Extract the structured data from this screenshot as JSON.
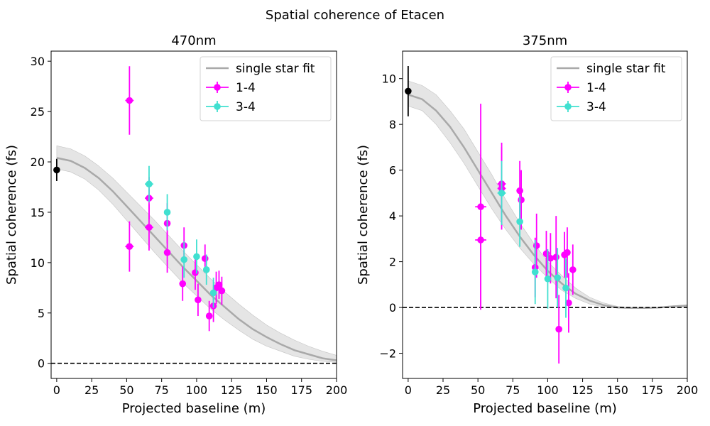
{
  "figure": {
    "suptitle": "Spatial coherence of Etacen"
  },
  "chart_data": [
    {
      "type": "scatter",
      "title": "470nm",
      "xlabel": "Projected baseline (m)",
      "ylabel": "Spatial coherence (fs)",
      "xlim": [
        -4,
        200
      ],
      "ylim": [
        -1.5,
        31
      ],
      "xticks": [
        0,
        25,
        50,
        75,
        100,
        125,
        150,
        175,
        200
      ],
      "yticks": [
        0,
        5,
        10,
        15,
        20,
        25,
        30
      ],
      "legend_position": "top-right",
      "reference_line_y": 0,
      "fit": {
        "name": "single star fit",
        "x": [
          0,
          10,
          20,
          30,
          40,
          50,
          60,
          70,
          80,
          90,
          100,
          110,
          120,
          130,
          140,
          150,
          160,
          170,
          180,
          190,
          200
        ],
        "y": [
          20.4,
          20.1,
          19.4,
          18.4,
          17.1,
          15.6,
          14.1,
          12.6,
          11.1,
          9.6,
          8.2,
          6.8,
          5.6,
          4.4,
          3.4,
          2.6,
          1.9,
          1.3,
          0.9,
          0.5,
          0.3
        ],
        "lower": [
          19.3,
          19.0,
          18.3,
          17.2,
          15.8,
          14.2,
          12.6,
          11.0,
          9.5,
          8.0,
          6.7,
          5.4,
          4.3,
          3.3,
          2.4,
          1.7,
          1.2,
          0.7,
          0.4,
          0.2,
          0.1
        ],
        "upper": [
          21.6,
          21.3,
          20.6,
          19.6,
          18.4,
          17.0,
          15.6,
          14.2,
          12.7,
          11.2,
          9.8,
          8.4,
          7.1,
          5.9,
          4.8,
          3.8,
          3.0,
          2.3,
          1.7,
          1.2,
          0.8
        ]
      },
      "zero_baseline_point": {
        "x": 0,
        "y": 19.2,
        "yerr": 1.1,
        "color": "#000000"
      },
      "series": [
        {
          "name": "1-4",
          "color": "#ff00ff",
          "points": [
            {
              "x": 52,
              "y": 26.1,
              "yerr": 3.4,
              "xerr": 3
            },
            {
              "x": 52,
              "y": 11.6,
              "yerr": 2.5,
              "xerr": 3
            },
            {
              "x": 66,
              "y": 16.4,
              "yerr": 2.1,
              "xerr": 3
            },
            {
              "x": 66,
              "y": 13.5,
              "yerr": 2.3,
              "xerr": 3
            },
            {
              "x": 79,
              "y": 13.9,
              "yerr": 2.0,
              "xerr": 2
            },
            {
              "x": 79,
              "y": 11.0,
              "yerr": 2.0,
              "xerr": 2
            },
            {
              "x": 91,
              "y": 11.7,
              "yerr": 1.8,
              "xerr": 2
            },
            {
              "x": 90,
              "y": 7.9,
              "yerr": 1.7,
              "xerr": 2
            },
            {
              "x": 99,
              "y": 9.0,
              "yerr": 1.7,
              "xerr": 2
            },
            {
              "x": 101,
              "y": 6.3,
              "yerr": 1.6,
              "xerr": 2
            },
            {
              "x": 106,
              "y": 10.4,
              "yerr": 1.4,
              "xerr": 2
            },
            {
              "x": 109,
              "y": 4.7,
              "yerr": 1.5,
              "xerr": 2
            },
            {
              "x": 112,
              "y": 5.7,
              "yerr": 1.6,
              "xerr": 2
            },
            {
              "x": 114,
              "y": 7.5,
              "yerr": 1.6,
              "xerr": 2
            },
            {
              "x": 116,
              "y": 7.8,
              "yerr": 1.4,
              "xerr": 2
            },
            {
              "x": 118,
              "y": 7.2,
              "yerr": 1.4,
              "xerr": 2
            }
          ]
        },
        {
          "name": "3-4",
          "color": "#40e0d0",
          "points": [
            {
              "x": 66,
              "y": 17.8,
              "yerr": 1.8,
              "xerr": 3
            },
            {
              "x": 79,
              "y": 15.0,
              "yerr": 1.8,
              "xerr": 2
            },
            {
              "x": 91,
              "y": 10.3,
              "yerr": 1.8,
              "xerr": 2
            },
            {
              "x": 100,
              "y": 10.6,
              "yerr": 1.7,
              "xerr": 2
            },
            {
              "x": 107,
              "y": 9.3,
              "yerr": 1.5,
              "xerr": 2
            },
            {
              "x": 112,
              "y": 7.0,
              "yerr": 1.5,
              "xerr": 2
            }
          ]
        }
      ]
    },
    {
      "type": "scatter",
      "title": "375nm",
      "xlabel": "Projected baseline (m)",
      "ylabel": "Spatial coherence (fs)",
      "xlim": [
        -4,
        200
      ],
      "ylim": [
        -3.1,
        11.2
      ],
      "xticks": [
        0,
        25,
        50,
        75,
        100,
        125,
        150,
        175,
        200
      ],
      "yticks": [
        -2,
        0,
        2,
        4,
        6,
        8,
        10
      ],
      "legend_position": "top-right",
      "reference_line_y": 0,
      "fit": {
        "name": "single star fit",
        "x": [
          0,
          10,
          20,
          30,
          40,
          50,
          60,
          70,
          80,
          90,
          100,
          110,
          120,
          130,
          140,
          150,
          160,
          170,
          180,
          190,
          200
        ],
        "y": [
          9.3,
          9.1,
          8.6,
          7.9,
          7.0,
          6.0,
          5.0,
          4.0,
          3.1,
          2.3,
          1.6,
          1.05,
          0.6,
          0.3,
          0.1,
          0.0,
          -0.02,
          -0.02,
          0.0,
          0.05,
          0.08
        ],
        "lower": [
          8.8,
          8.6,
          8.0,
          7.2,
          6.3,
          5.3,
          4.3,
          3.4,
          2.6,
          1.9,
          1.3,
          0.75,
          0.4,
          0.15,
          0.02,
          -0.03,
          -0.05,
          -0.05,
          -0.03,
          0.0,
          0.02
        ],
        "upper": [
          9.9,
          9.7,
          9.3,
          8.6,
          7.8,
          6.8,
          5.8,
          4.7,
          3.7,
          2.8,
          2.0,
          1.4,
          0.85,
          0.45,
          0.2,
          0.05,
          0.0,
          0.0,
          0.02,
          0.08,
          0.12
        ]
      },
      "zero_baseline_point": {
        "x": 0,
        "y": 9.45,
        "yerr": 1.1,
        "color": "#000000"
      },
      "series": [
        {
          "name": "1-4",
          "color": "#ff00ff",
          "points": [
            {
              "x": 52,
              "y": 4.4,
              "yerr": 4.5,
              "xerr": 4
            },
            {
              "x": 52,
              "y": 2.95,
              "yerr": 3.0,
              "xerr": 4
            },
            {
              "x": 67,
              "y": 5.4,
              "yerr": 1.8,
              "xerr": 3
            },
            {
              "x": 67,
              "y": 5.2,
              "yerr": 1.8,
              "xerr": 3
            },
            {
              "x": 80,
              "y": 5.1,
              "yerr": 1.3,
              "xerr": 2
            },
            {
              "x": 81,
              "y": 4.7,
              "yerr": 1.3,
              "xerr": 2
            },
            {
              "x": 92,
              "y": 2.7,
              "yerr": 1.4,
              "xerr": 2
            },
            {
              "x": 91,
              "y": 1.75,
              "yerr": 1.3,
              "xerr": 2
            },
            {
              "x": 99,
              "y": 2.35,
              "yerr": 1.0,
              "xerr": 2
            },
            {
              "x": 102,
              "y": 2.15,
              "yerr": 1.1,
              "xerr": 2
            },
            {
              "x": 106,
              "y": 2.2,
              "yerr": 1.8,
              "xerr": 2
            },
            {
              "x": 108,
              "y": -0.95,
              "yerr": 1.5,
              "xerr": 2
            },
            {
              "x": 112,
              "y": 2.3,
              "yerr": 1.0,
              "xerr": 2
            },
            {
              "x": 114,
              "y": 2.4,
              "yerr": 1.1,
              "xerr": 2
            },
            {
              "x": 115,
              "y": 0.2,
              "yerr": 1.3,
              "xerr": 2
            },
            {
              "x": 118,
              "y": 1.65,
              "yerr": 1.1,
              "xerr": 2
            }
          ]
        },
        {
          "name": "3-4",
          "color": "#40e0d0",
          "points": [
            {
              "x": 67,
              "y": 5.0,
              "yerr": 1.4,
              "xerr": 3
            },
            {
              "x": 80,
              "y": 3.75,
              "yerr": 1.1,
              "xerr": 2
            },
            {
              "x": 91,
              "y": 1.55,
              "yerr": 1.4,
              "xerr": 2
            },
            {
              "x": 100,
              "y": 1.25,
              "yerr": 1.3,
              "xerr": 2
            },
            {
              "x": 107,
              "y": 1.3,
              "yerr": 1.3,
              "xerr": 2
            },
            {
              "x": 113,
              "y": 0.85,
              "yerr": 1.3,
              "xerr": 2
            }
          ]
        }
      ]
    }
  ]
}
